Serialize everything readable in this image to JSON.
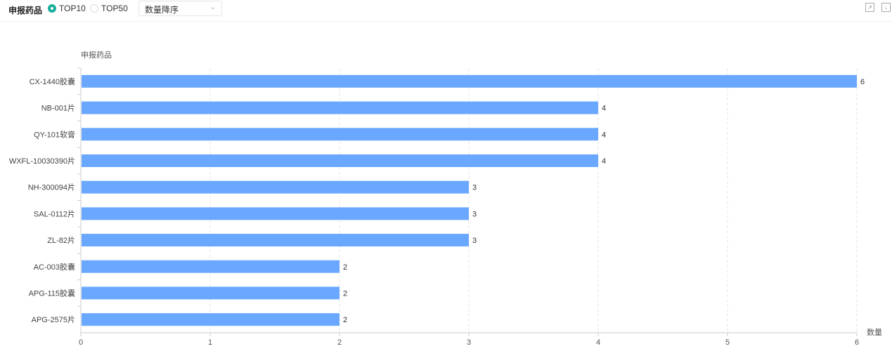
{
  "toolbar": {
    "title": "申报药品",
    "radios": [
      {
        "label": "TOP10",
        "selected": true
      },
      {
        "label": "TOP50",
        "selected": false
      }
    ],
    "sort_select": "数量降序",
    "icons": [
      "expand-icon",
      "download-icon"
    ],
    "accent": "#1aad9c"
  },
  "chart_data": {
    "type": "bar",
    "orientation": "horizontal",
    "ylabel": "申报药品",
    "xlabel": "数量",
    "categories": [
      "CX-1440胶囊",
      "NB-001片",
      "QY-101软膏",
      "WXFL-10030390片",
      "NH-300094片",
      "SAL-0112片",
      "ZL-82片",
      "AC-003胶囊",
      "APG-115胶囊",
      "APG-2575片"
    ],
    "values": [
      6,
      4,
      4,
      4,
      3,
      3,
      3,
      2,
      2,
      2
    ],
    "xlim": [
      0,
      6
    ],
    "xticks": [
      0,
      1,
      2,
      3,
      4,
      5,
      6
    ],
    "grid": "vertical dashed",
    "data_labels": true,
    "bar_color": "#6aa8ff"
  }
}
